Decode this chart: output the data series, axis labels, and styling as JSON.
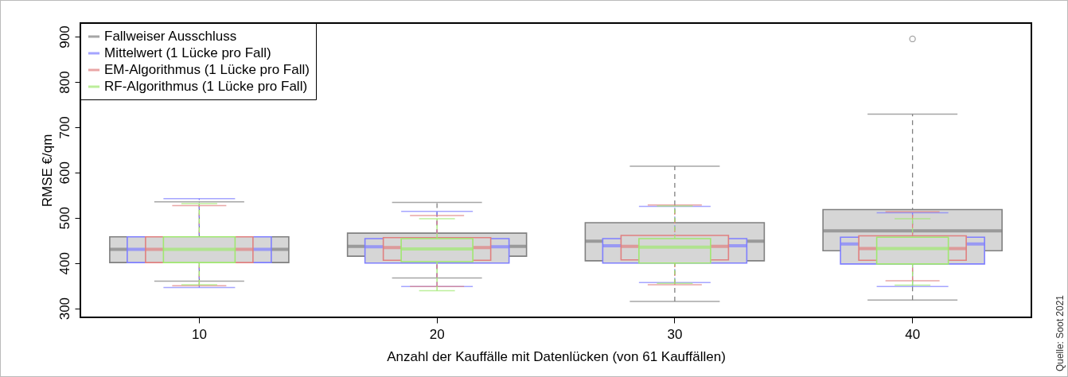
{
  "chart_data": {
    "type": "box",
    "xlabel": "Anzahl der Kauffälle mit Datenlücken (von 61 Kauffällen)",
    "ylabel": "RMSE €/qm",
    "categories": [
      "10",
      "20",
      "30",
      "40"
    ],
    "ylim": [
      280,
      930
    ],
    "yticks": [
      300,
      400,
      500,
      600,
      700,
      800,
      900
    ],
    "legend": "top left",
    "grid": false,
    "annotations": [
      "Quelle: Soot 2021"
    ],
    "series": [
      {
        "name": "Fallweiser Ausschluss",
        "color": "#808080",
        "boxes": [
          {
            "low": 360,
            "q1": 401,
            "median": 430,
            "q3": 458,
            "high": 535
          },
          {
            "low": 367,
            "q1": 415,
            "median": 437,
            "q3": 466,
            "high": 534
          },
          {
            "low": 315,
            "q1": 405,
            "median": 448,
            "q3": 489,
            "high": 614
          },
          {
            "low": 318,
            "q1": 427,
            "median": 471,
            "q3": 518,
            "high": 729,
            "outliers": [
              895
            ]
          }
        ]
      },
      {
        "name": "Mittelwert (1 Lücke pro Fall)",
        "color": "#7f7fff",
        "boxes": [
          {
            "low": 346,
            "q1": 401,
            "median": 430,
            "q3": 458,
            "high": 542
          },
          {
            "low": 348,
            "q1": 400,
            "median": 436,
            "q3": 454,
            "high": 514
          },
          {
            "low": 357,
            "q1": 400,
            "median": 438,
            "q3": 454,
            "high": 525
          },
          {
            "low": 348,
            "q1": 398,
            "median": 442,
            "q3": 457,
            "high": 511
          }
        ]
      },
      {
        "name": "EM-Algorithmus (1 Lücke pro Fall)",
        "color": "#e08080",
        "boxes": [
          {
            "low": 350,
            "q1": 401,
            "median": 430,
            "q3": 458,
            "high": 527
          },
          {
            "low": 348,
            "q1": 406,
            "median": 434,
            "q3": 456,
            "high": 505
          },
          {
            "low": 352,
            "q1": 407,
            "median": 437,
            "q3": 461,
            "high": 528
          },
          {
            "low": 361,
            "q1": 406,
            "median": 432,
            "q3": 460,
            "high": 513
          }
        ]
      },
      {
        "name": "RF-Algorithmus (1 Lücke pro Fall)",
        "color": "#a0e870",
        "boxes": [
          {
            "low": 352,
            "q1": 401,
            "median": 430,
            "q3": 458,
            "high": 531
          },
          {
            "low": 339,
            "q1": 403,
            "median": 431,
            "q3": 454,
            "high": 498
          },
          {
            "low": 355,
            "q1": 400,
            "median": 435,
            "q3": 454,
            "high": 526
          },
          {
            "low": 351,
            "q1": 398,
            "median": 432,
            "q3": 457,
            "high": 498
          }
        ]
      }
    ]
  }
}
